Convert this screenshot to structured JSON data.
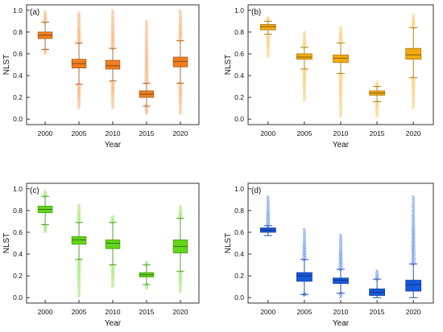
{
  "chart_data": [
    {
      "type": "box",
      "panel_label": "(a)",
      "ylabel": "NLST",
      "xlabel": "Year",
      "ylim": [
        -0.05,
        1.05
      ],
      "yticks": [
        "0.0",
        "0.2",
        "0.4",
        "0.6",
        "0.8",
        "1.0"
      ],
      "categories": [
        "2000",
        "2005",
        "2010",
        "2015",
        "2020"
      ],
      "color": "#f07f21",
      "series": [
        {
          "category": "2000",
          "min": 0.64,
          "q1": 0.74,
          "median": 0.77,
          "q3": 0.8,
          "max": 0.89,
          "outlier_low": 0.6,
          "outlier_high": 0.99
        },
        {
          "category": "2005",
          "min": 0.32,
          "q1": 0.47,
          "median": 0.51,
          "q3": 0.55,
          "max": 0.7,
          "outlier_low": 0.1,
          "outlier_high": 0.98
        },
        {
          "category": "2010",
          "min": 0.35,
          "q1": 0.46,
          "median": 0.49,
          "q3": 0.54,
          "max": 0.65,
          "outlier_low": 0.1,
          "outlier_high": 1.0
        },
        {
          "category": "2015",
          "min": 0.12,
          "q1": 0.2,
          "median": 0.23,
          "q3": 0.26,
          "max": 0.33,
          "outlier_low": 0.05,
          "outlier_high": 0.9
        },
        {
          "category": "2020",
          "min": 0.33,
          "q1": 0.48,
          "median": 0.53,
          "q3": 0.57,
          "max": 0.72,
          "outlier_low": 0.05,
          "outlier_high": 1.0
        }
      ]
    },
    {
      "type": "box",
      "panel_label": "(b)",
      "ylabel": "NLST",
      "xlabel": "Year",
      "ylim": [
        -0.05,
        1.05
      ],
      "yticks": [
        "0.0",
        "0.2",
        "0.4",
        "0.6",
        "0.8",
        "1.0"
      ],
      "categories": [
        "2000",
        "2005",
        "2010",
        "2015",
        "2020"
      ],
      "color": "#f2ab13",
      "series": [
        {
          "category": "2000",
          "min": 0.78,
          "q1": 0.82,
          "median": 0.85,
          "q3": 0.87,
          "max": 0.9,
          "outlier_low": 0.57,
          "outlier_high": 0.94
        },
        {
          "category": "2005",
          "min": 0.46,
          "q1": 0.55,
          "median": 0.57,
          "q3": 0.6,
          "max": 0.66,
          "outlier_low": 0.17,
          "outlier_high": 0.8
        },
        {
          "category": "2010",
          "min": 0.42,
          "q1": 0.52,
          "median": 0.56,
          "q3": 0.59,
          "max": 0.7,
          "outlier_low": 0.02,
          "outlier_high": 0.85
        },
        {
          "category": "2015",
          "min": 0.16,
          "q1": 0.22,
          "median": 0.24,
          "q3": 0.26,
          "max": 0.3,
          "outlier_low": 0.02,
          "outlier_high": 0.34
        },
        {
          "category": "2020",
          "min": 0.38,
          "q1": 0.55,
          "median": 0.59,
          "q3": 0.65,
          "max": 0.84,
          "outlier_low": 0.1,
          "outlier_high": 0.96
        }
      ]
    },
    {
      "type": "box",
      "panel_label": "(c)",
      "ylabel": "NLST",
      "xlabel": "Year",
      "ylim": [
        -0.05,
        1.05
      ],
      "yticks": [
        "0.0",
        "0.2",
        "0.4",
        "0.6",
        "0.8",
        "1.0"
      ],
      "categories": [
        "2000",
        "2005",
        "2010",
        "2015",
        "2020"
      ],
      "color": "#64d51b",
      "series": [
        {
          "category": "2000",
          "min": 0.67,
          "q1": 0.78,
          "median": 0.81,
          "q3": 0.84,
          "max": 0.93,
          "outlier_low": 0.6,
          "outlier_high": 0.98
        },
        {
          "category": "2005",
          "min": 0.35,
          "q1": 0.49,
          "median": 0.53,
          "q3": 0.56,
          "max": 0.69,
          "outlier_low": 0.01,
          "outlier_high": 0.85
        },
        {
          "category": "2010",
          "min": 0.3,
          "q1": 0.45,
          "median": 0.5,
          "q3": 0.53,
          "max": 0.69,
          "outlier_low": 0.1,
          "outlier_high": 0.75
        },
        {
          "category": "2015",
          "min": 0.12,
          "q1": 0.19,
          "median": 0.21,
          "q3": 0.23,
          "max": 0.3,
          "outlier_low": 0.08,
          "outlier_high": 0.33
        },
        {
          "category": "2020",
          "min": 0.24,
          "q1": 0.41,
          "median": 0.47,
          "q3": 0.53,
          "max": 0.73,
          "outlier_low": 0.05,
          "outlier_high": 0.84
        }
      ]
    },
    {
      "type": "box",
      "panel_label": "(d)",
      "ylabel": "NLST",
      "xlabel": "Year",
      "ylim": [
        -0.05,
        1.05
      ],
      "yticks": [
        "0.0",
        "0.2",
        "0.4",
        "0.6",
        "0.8",
        "1.0"
      ],
      "categories": [
        "2000",
        "2005",
        "2010",
        "2015",
        "2020"
      ],
      "color": "#1859dc",
      "series": [
        {
          "category": "2000",
          "min": 0.57,
          "q1": 0.6,
          "median": 0.62,
          "q3": 0.64,
          "max": 0.66,
          "outlier_low": 0.57,
          "outlier_high": 0.93
        },
        {
          "category": "2005",
          "min": 0.03,
          "q1": 0.15,
          "median": 0.2,
          "q3": 0.23,
          "max": 0.35,
          "outlier_low": 0.02,
          "outlier_high": 0.63
        },
        {
          "category": "2010",
          "min": 0.04,
          "q1": 0.13,
          "median": 0.16,
          "q3": 0.18,
          "max": 0.26,
          "outlier_low": 0.0,
          "outlier_high": 0.58
        },
        {
          "category": "2015",
          "min": 0.0,
          "q1": 0.02,
          "median": 0.05,
          "q3": 0.08,
          "max": 0.17,
          "outlier_low": 0.0,
          "outlier_high": 0.25
        },
        {
          "category": "2020",
          "min": 0.0,
          "q1": 0.06,
          "median": 0.12,
          "q3": 0.16,
          "max": 0.31,
          "outlier_low": 0.0,
          "outlier_high": 0.93
        }
      ]
    }
  ]
}
